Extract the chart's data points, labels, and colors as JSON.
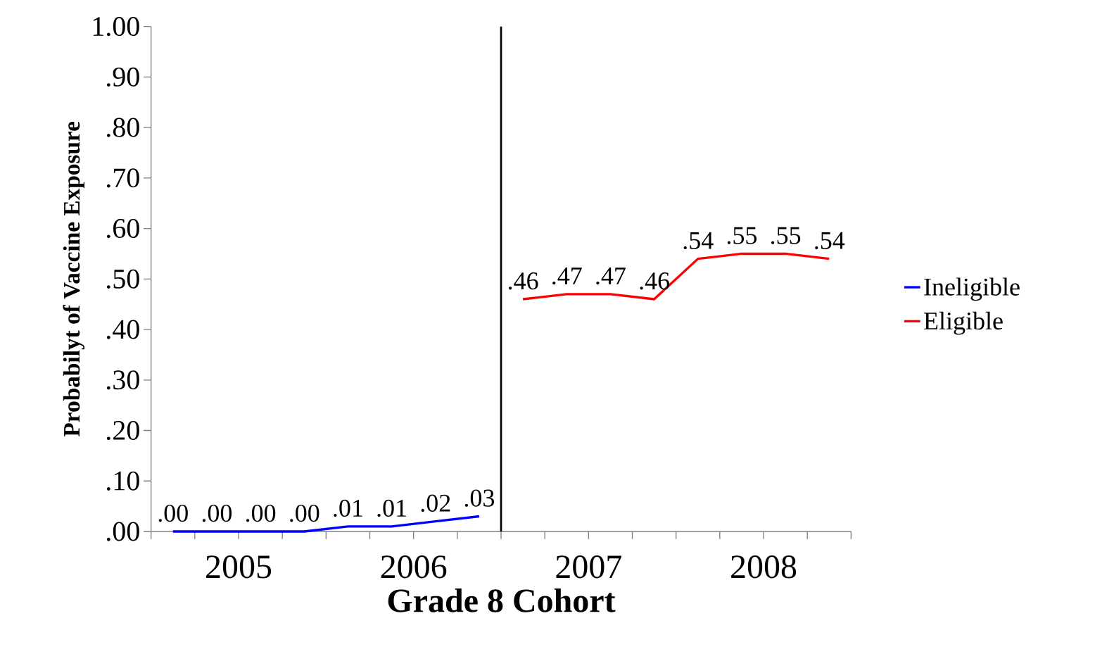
{
  "chart_data": {
    "type": "line",
    "xlabel": "Grade 8 Cohort",
    "ylabel": "Probabilyt of Vaccine Exposure",
    "xlim": [
      2005,
      2009
    ],
    "xticks": [
      {
        "value": 2005,
        "label": null
      },
      {
        "value": 2005.25,
        "label": null
      },
      {
        "value": 2005.5,
        "label": "2005"
      },
      {
        "value": 2005.75,
        "label": null
      },
      {
        "value": 2006,
        "label": null
      },
      {
        "value": 2006.25,
        "label": null
      },
      {
        "value": 2006.5,
        "label": "2006"
      },
      {
        "value": 2006.75,
        "label": null
      },
      {
        "value": 2007,
        "label": null
      },
      {
        "value": 2007.25,
        "label": null
      },
      {
        "value": 2007.5,
        "label": "2007"
      },
      {
        "value": 2007.75,
        "label": null
      },
      {
        "value": 2008,
        "label": null
      },
      {
        "value": 2008.25,
        "label": null
      },
      {
        "value": 2008.5,
        "label": "2008"
      },
      {
        "value": 2008.75,
        "label": null
      },
      {
        "value": 2009,
        "label": null
      }
    ],
    "ylim": [
      0,
      1
    ],
    "yticks": [
      {
        "value": 0,
        "label": ".00"
      },
      {
        "value": 0.1,
        "label": ".10"
      },
      {
        "value": 0.2,
        "label": ".20"
      },
      {
        "value": 0.3,
        "label": ".30"
      },
      {
        "value": 0.4,
        "label": ".40"
      },
      {
        "value": 0.5,
        "label": ".50"
      },
      {
        "value": 0.6,
        "label": ".60"
      },
      {
        "value": 0.7,
        "label": ".70"
      },
      {
        "value": 0.8,
        "label": ".80"
      },
      {
        "value": 0.9,
        "label": ".90"
      },
      {
        "value": 1,
        "label": "1.00"
      }
    ],
    "series": [
      {
        "name": "Ineligible",
        "color": "#0000ff",
        "x": [
          2005.125,
          2005.375,
          2005.625,
          2005.875,
          2006.125,
          2006.375,
          2006.625,
          2006.875
        ],
        "values": [
          0,
          0,
          0,
          0,
          0.01,
          0.01,
          0.02,
          0.03
        ],
        "value_labels": [
          ".00",
          ".00",
          ".00",
          ".00",
          ".01",
          ".01",
          ".02",
          ".03"
        ]
      },
      {
        "name": "Eligible",
        "color": "#ff0000",
        "x": [
          2007.125,
          2007.375,
          2007.625,
          2007.875,
          2008.125,
          2008.375,
          2008.625,
          2008.875
        ],
        "values": [
          0.46,
          0.47,
          0.47,
          0.46,
          0.54,
          0.55,
          0.55,
          0.54
        ],
        "value_labels": [
          ".46",
          ".47",
          ".47",
          ".46",
          ".54",
          ".55",
          ".55",
          ".54"
        ]
      }
    ],
    "ref_lines": [
      {
        "axis": "x",
        "value": 2007,
        "color": "#000000"
      }
    ],
    "legend": "right",
    "grid": false
  }
}
